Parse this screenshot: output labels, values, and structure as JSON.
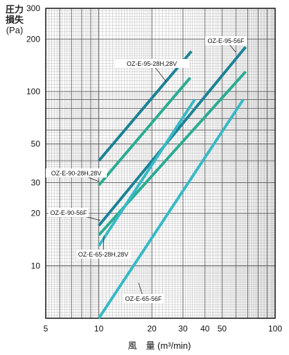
{
  "y_title": {
    "line1": "圧力",
    "line2": "損失",
    "unit": "(Pa)"
  },
  "x_title": "風　量 (m³/min)",
  "chart_data": {
    "type": "line",
    "x_scale": "log",
    "y_scale": "log",
    "xlim": [
      5,
      100
    ],
    "ylim": [
      5,
      300
    ],
    "x_ticks": [
      5,
      10,
      20,
      30,
      40,
      50,
      100
    ],
    "y_ticks": [
      10,
      20,
      30,
      50,
      100,
      200,
      300
    ],
    "grid": true,
    "xlabel": "風　量 (m³/min)",
    "ylabel": "圧力損失 (Pa)",
    "series": [
      {
        "name": "OZ-E-95-28H,28V",
        "color": "#1b8296",
        "x": [
          10,
          33.5
        ],
        "y": [
          40,
          170
        ]
      },
      {
        "name": "OZ-E-95-56F",
        "color": "#1b8296",
        "x": [
          10,
          68
        ],
        "y": [
          17,
          180
        ]
      },
      {
        "name": "OZ-E-90-28H,28V",
        "color": "#2aac92",
        "x": [
          10,
          33
        ],
        "y": [
          29,
          120
        ]
      },
      {
        "name": "OZ-E-90-56F",
        "color": "#2aac92",
        "x": [
          10,
          68
        ],
        "y": [
          15,
          130
        ]
      },
      {
        "name": "OZ-E-65-28H,28V",
        "color": "#37b9c6",
        "x": [
          10,
          35
        ],
        "y": [
          13,
          90
        ]
      },
      {
        "name": "OZ-E-65-56F",
        "color": "#37b9c6",
        "x": [
          10,
          66
        ],
        "y": [
          5,
          90
        ]
      }
    ],
    "annotations": [
      {
        "text": "OZ-E-95-28H,28V",
        "series": 0
      },
      {
        "text": "OZ-E-95-56F",
        "series": 1
      },
      {
        "text": "OZ-E-90-28H,28V",
        "series": 2
      },
      {
        "text": "OZ-E-90-56F",
        "series": 3
      },
      {
        "text": "OZ-E-65-28H,28V",
        "series": 4
      },
      {
        "text": "OZ-E-65-56F",
        "series": 5
      }
    ]
  }
}
